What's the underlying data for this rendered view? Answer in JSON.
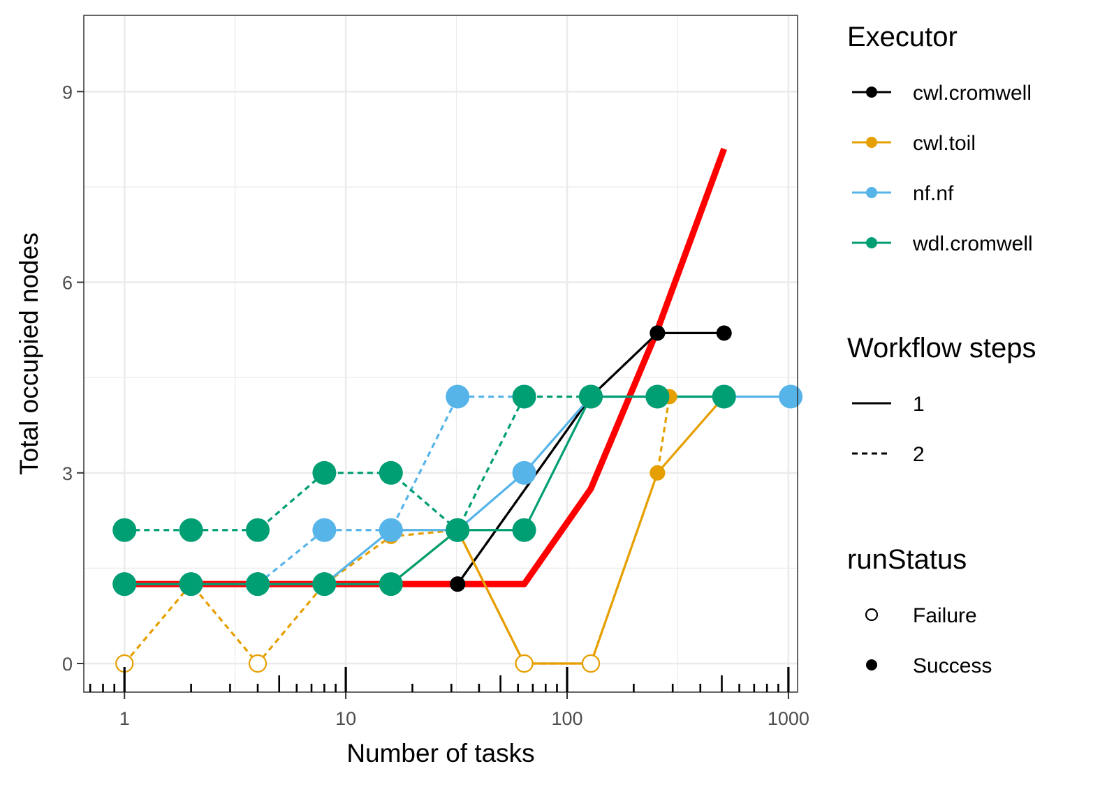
{
  "chart_data": {
    "type": "line",
    "xlabel": "Number of tasks",
    "ylabel": "Total occupied nodes",
    "x_scale": "log10",
    "xlim": [
      0.655,
      1100
    ],
    "ylim": [
      -0.45,
      10.2
    ],
    "x_ticks": [
      1,
      10,
      100,
      1000
    ],
    "x_tick_labels": [
      "1",
      "10",
      "100",
      "1000"
    ],
    "y_ticks": [
      0,
      3,
      6,
      9
    ],
    "y_tick_labels": [
      "0",
      "3",
      "6",
      "9"
    ],
    "grid": true,
    "legend_position": "right",
    "legends": {
      "executor": {
        "title": "Executor",
        "entries": [
          {
            "label": "cwl.cromwell",
            "color": "#000000"
          },
          {
            "label": "cwl.toil",
            "color": "#E69F00"
          },
          {
            "label": "nf.nf",
            "color": "#56B4E9"
          },
          {
            "label": "wdl.cromwell",
            "color": "#009E73"
          }
        ]
      },
      "steps": {
        "title": "Workflow steps",
        "entries": [
          {
            "label": "1",
            "dash": "solid"
          },
          {
            "label": "2",
            "dash": "dashed"
          }
        ]
      },
      "status": {
        "title": "runStatus",
        "entries": [
          {
            "label": "Failure",
            "shape": "open-circle"
          },
          {
            "label": "Success",
            "shape": "filled-circle"
          }
        ]
      }
    },
    "reference_line": {
      "color": "#FF0000",
      "x": [
        1,
        2,
        4,
        8,
        16,
        32,
        64,
        128,
        256,
        512
      ],
      "y": [
        1.25,
        1.25,
        1.25,
        1.25,
        1.25,
        1.25,
        1.25,
        2.75,
        5.25,
        8.1
      ]
    },
    "series": [
      {
        "executor": "cwl.cromwell",
        "steps": "1",
        "color": "#000000",
        "size": "small",
        "points": [
          [
            32,
            1.25,
            "Success"
          ],
          [
            128,
            4.2,
            "Success"
          ],
          [
            256,
            5.2,
            "Success"
          ],
          [
            512,
            5.2,
            "Success"
          ]
        ]
      },
      {
        "executor": "cwl.cromwell",
        "steps": "2",
        "color": "#000000",
        "size": "small",
        "points": [
          [
            32,
            1.25,
            "Success"
          ],
          [
            128,
            4.2,
            "Success"
          ],
          [
            256,
            5.2,
            "Success"
          ]
        ]
      },
      {
        "executor": "cwl.toil",
        "steps": "1",
        "color": "#E69F00",
        "size": "small",
        "points": [
          [
            16,
            1.25,
            "Success"
          ],
          [
            32,
            2.1,
            "Success"
          ],
          [
            64,
            0,
            "Failure"
          ],
          [
            128,
            0,
            "Failure"
          ],
          [
            256,
            3.0,
            "Success"
          ],
          [
            512,
            4.2,
            "Success"
          ]
        ]
      },
      {
        "executor": "cwl.toil",
        "steps": "2",
        "color": "#E69F00",
        "size": "small",
        "points": [
          [
            1,
            0,
            "Failure"
          ],
          [
            2,
            1.25,
            "Success"
          ],
          [
            4,
            0,
            "Failure"
          ],
          [
            8,
            1.25,
            "Success"
          ],
          [
            16,
            2.0,
            "Success"
          ],
          [
            32,
            2.1,
            "Success"
          ],
          [
            64,
            0,
            "Failure"
          ],
          [
            128,
            0,
            "Failure"
          ],
          [
            256,
            3.0,
            "Success"
          ],
          [
            290,
            4.2,
            "Success"
          ]
        ]
      },
      {
        "executor": "nf.nf",
        "steps": "1",
        "color": "#56B4E9",
        "size": "large",
        "points": [
          [
            1,
            1.25,
            "Success"
          ],
          [
            2,
            1.25,
            "Success"
          ],
          [
            4,
            1.25,
            "Success"
          ],
          [
            8,
            1.25,
            "Success"
          ],
          [
            16,
            2.1,
            "Success"
          ],
          [
            32,
            2.1,
            "Success"
          ],
          [
            64,
            3.0,
            "Success"
          ],
          [
            128,
            4.2,
            "Success"
          ],
          [
            256,
            4.2,
            "Success"
          ],
          [
            512,
            4.2,
            "Success"
          ],
          [
            1024,
            4.2,
            "Success"
          ]
        ]
      },
      {
        "executor": "nf.nf",
        "steps": "2",
        "color": "#56B4E9",
        "size": "large",
        "points": [
          [
            4,
            1.25,
            "Success"
          ],
          [
            8,
            2.1,
            "Success"
          ],
          [
            16,
            2.1,
            "Success"
          ],
          [
            32,
            4.2,
            "Success"
          ],
          [
            64,
            4.2,
            "Success"
          ]
        ]
      },
      {
        "executor": "wdl.cromwell",
        "steps": "1",
        "color": "#009E73",
        "size": "large",
        "points": [
          [
            1,
            1.25,
            "Success"
          ],
          [
            2,
            1.25,
            "Success"
          ],
          [
            4,
            1.25,
            "Success"
          ],
          [
            8,
            1.25,
            "Success"
          ],
          [
            16,
            1.25,
            "Success"
          ],
          [
            32,
            2.1,
            "Success"
          ],
          [
            64,
            2.1,
            "Success"
          ],
          [
            128,
            4.2,
            "Success"
          ],
          [
            256,
            4.2,
            "Success"
          ],
          [
            512,
            4.2,
            "Success"
          ]
        ]
      },
      {
        "executor": "wdl.cromwell",
        "steps": "2",
        "color": "#009E73",
        "size": "large",
        "points": [
          [
            1,
            2.1,
            "Success"
          ],
          [
            2,
            2.1,
            "Success"
          ],
          [
            4,
            2.1,
            "Success"
          ],
          [
            8,
            3.0,
            "Success"
          ],
          [
            16,
            3.0,
            "Success"
          ],
          [
            32,
            2.1,
            "Success"
          ],
          [
            64,
            4.2,
            "Success"
          ],
          [
            128,
            4.2,
            "Success"
          ]
        ]
      }
    ]
  }
}
